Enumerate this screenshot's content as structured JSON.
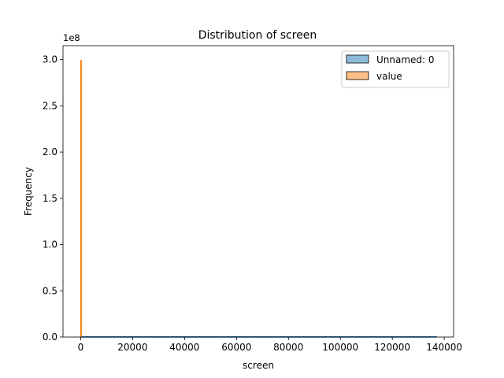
{
  "chart_data": {
    "type": "histogram",
    "title": "Distribution of screen",
    "xlabel": "screen",
    "ylabel": "Frequency",
    "y_offset_label": "1e8",
    "xlim": [
      -6800,
      143600
    ],
    "ylim": [
      0,
      3.15
    ],
    "y_scale": 100000000,
    "x_ticks": [
      0,
      20000,
      40000,
      60000,
      80000,
      100000,
      120000,
      140000
    ],
    "x_tick_labels": [
      "0",
      "20000",
      "40000",
      "60000",
      "80000",
      "100000",
      "120000",
      "140000"
    ],
    "y_ticks": [
      0,
      0.5,
      1.0,
      1.5,
      2.0,
      2.5,
      3.0
    ],
    "y_tick_labels": [
      "0.0",
      "0.5",
      "1.0",
      "1.5",
      "2.0",
      "2.5",
      "3.0"
    ],
    "grid": false,
    "legend_position": "top-right",
    "series": [
      {
        "name": "Unnamed: 0",
        "color": "#1f77b4",
        "fill_opacity": 0.5,
        "x_range": [
          0,
          137000
        ],
        "values_scaled": [
          0.005
        ]
      },
      {
        "name": "value",
        "color": "#ff7f0e",
        "fill_opacity": 0.5,
        "x_range": [
          0,
          280
        ],
        "values_scaled": [
          2.99
        ]
      }
    ]
  }
}
